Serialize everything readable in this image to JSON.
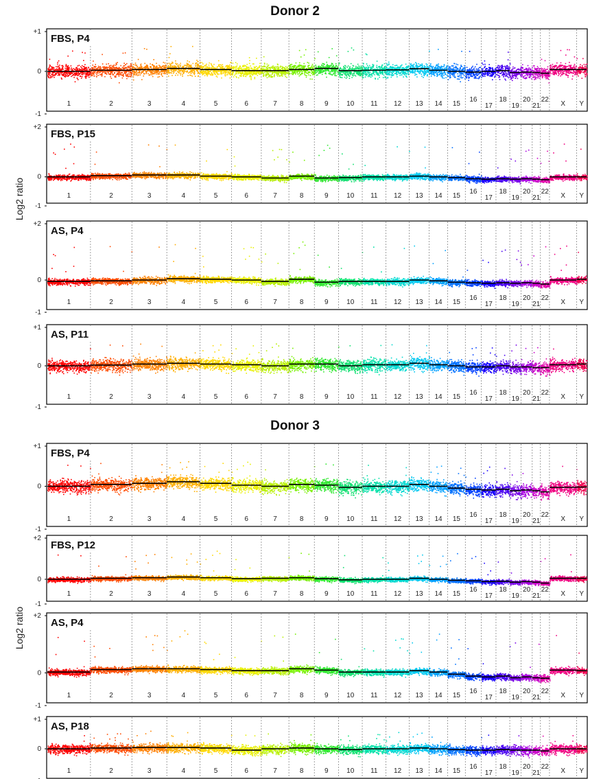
{
  "figure": {
    "donors": [
      {
        "title": "Donor 2",
        "ylabel": "Log2 ratio"
      },
      {
        "title": "Donor 3",
        "ylabel": "Log2 ratio"
      }
    ]
  },
  "chart_data": [
    {
      "type": "scatter",
      "donor": "Donor 2",
      "label": "FBS, P4",
      "y_ticks": [
        "+1",
        "0",
        "-1"
      ],
      "ylim": [
        -1,
        1
      ],
      "x_categories": [
        "1",
        "2",
        "3",
        "4",
        "5",
        "6",
        "7",
        "8",
        "9",
        "10",
        "11",
        "12",
        "13",
        "14",
        "15",
        "16",
        "17",
        "18",
        "19",
        "20",
        "21",
        "22",
        "X",
        "Y"
      ],
      "segment_means": [
        0.0,
        0.03,
        0.05,
        0.08,
        0.05,
        0.02,
        0.02,
        0.05,
        0.08,
        0.02,
        0.03,
        0.04,
        0.07,
        0.03,
        0.0,
        -0.02,
        0.0,
        0.02,
        -0.03,
        -0.02,
        -0.03,
        -0.05,
        0.05,
        0.05
      ]
    },
    {
      "type": "scatter",
      "donor": "Donor 2",
      "label": "FBS, P15",
      "y_ticks": [
        "+2",
        "0",
        "-1"
      ],
      "ylim": [
        -1,
        2
      ],
      "x_categories": [
        "1",
        "2",
        "3",
        "4",
        "5",
        "6",
        "7",
        "8",
        "9",
        "10",
        "11",
        "12",
        "13",
        "14",
        "15",
        "16",
        "17",
        "18",
        "19",
        "20",
        "21",
        "22",
        "X",
        "Y"
      ],
      "segment_means": [
        0.0,
        0.05,
        0.08,
        0.08,
        0.03,
        0.0,
        -0.05,
        0.03,
        -0.05,
        -0.03,
        0.0,
        0.0,
        0.03,
        0.0,
        -0.03,
        -0.08,
        -0.1,
        -0.08,
        -0.1,
        -0.08,
        -0.1,
        -0.12,
        0.0,
        0.0
      ]
    },
    {
      "type": "scatter",
      "donor": "Donor 2",
      "label": "AS, P4",
      "y_ticks": [
        "+2",
        "0",
        "-1"
      ],
      "ylim": [
        -1,
        2
      ],
      "x_categories": [
        "1",
        "2",
        "3",
        "4",
        "5",
        "6",
        "7",
        "8",
        "9",
        "10",
        "11",
        "12",
        "13",
        "14",
        "15",
        "16",
        "17",
        "18",
        "19",
        "20",
        "21",
        "22",
        "X",
        "Y"
      ],
      "segment_means": [
        -0.05,
        -0.03,
        0.0,
        0.05,
        0.03,
        0.0,
        -0.05,
        0.03,
        -0.08,
        -0.05,
        -0.05,
        -0.05,
        0.0,
        -0.03,
        -0.08,
        -0.1,
        -0.12,
        -0.1,
        -0.12,
        -0.1,
        -0.12,
        -0.15,
        0.0,
        0.03
      ]
    },
    {
      "type": "scatter",
      "donor": "Donor 2",
      "label": "AS, P11",
      "y_ticks": [
        "+1",
        "0",
        "-1"
      ],
      "ylim": [
        -1,
        1
      ],
      "x_categories": [
        "1",
        "2",
        "3",
        "4",
        "5",
        "6",
        "7",
        "8",
        "9",
        "10",
        "11",
        "12",
        "13",
        "14",
        "15",
        "16",
        "17",
        "18",
        "19",
        "20",
        "21",
        "22",
        "X",
        "Y"
      ],
      "segment_means": [
        0.0,
        0.02,
        0.05,
        0.07,
        0.05,
        0.03,
        0.0,
        0.05,
        0.05,
        0.0,
        0.03,
        0.03,
        0.07,
        0.03,
        0.0,
        -0.03,
        -0.03,
        0.0,
        -0.03,
        -0.03,
        -0.05,
        -0.05,
        0.03,
        0.05
      ]
    },
    {
      "type": "scatter",
      "donor": "Donor 3",
      "label": "FBS, P4",
      "y_ticks": [
        "+1",
        "0",
        "-1"
      ],
      "ylim": [
        -1,
        1
      ],
      "x_categories": [
        "1",
        "2",
        "3",
        "4",
        "5",
        "6",
        "7",
        "8",
        "9",
        "10",
        "11",
        "12",
        "13",
        "14",
        "15",
        "16",
        "17",
        "18",
        "19",
        "20",
        "21",
        "22",
        "X",
        "Y"
      ],
      "segment_means": [
        0.0,
        0.05,
        0.08,
        0.12,
        0.08,
        0.03,
        0.0,
        0.05,
        0.03,
        -0.03,
        0.0,
        0.0,
        0.05,
        0.0,
        -0.05,
        -0.08,
        -0.1,
        -0.08,
        -0.12,
        -0.1,
        -0.12,
        -0.15,
        -0.03,
        -0.02
      ]
    },
    {
      "type": "scatter",
      "donor": "Donor 3",
      "label": "FBS, P12",
      "y_ticks": [
        "+2",
        "0",
        "-1"
      ],
      "ylim": [
        -1,
        2
      ],
      "x_categories": [
        "1",
        "2",
        "3",
        "4",
        "5",
        "6",
        "7",
        "8",
        "9",
        "10",
        "11",
        "12",
        "13",
        "14",
        "15",
        "16",
        "17",
        "18",
        "19",
        "20",
        "21",
        "22",
        "X",
        "Y"
      ],
      "segment_means": [
        0.0,
        0.05,
        0.08,
        0.12,
        0.08,
        0.03,
        0.05,
        0.08,
        0.03,
        -0.03,
        0.0,
        0.0,
        0.05,
        0.0,
        -0.05,
        -0.08,
        -0.12,
        -0.1,
        -0.15,
        -0.12,
        -0.15,
        -0.2,
        0.05,
        0.05
      ]
    },
    {
      "type": "scatter",
      "donor": "Donor 3",
      "label": "AS, P4",
      "y_ticks": [
        "+2",
        "0",
        "-1"
      ],
      "ylim": [
        -1,
        2
      ],
      "x_categories": [
        "1",
        "2",
        "3",
        "4",
        "5",
        "6",
        "7",
        "8",
        "9",
        "10",
        "11",
        "12",
        "13",
        "14",
        "15",
        "16",
        "17",
        "18",
        "19",
        "20",
        "21",
        "22",
        "X",
        "Y"
      ],
      "segment_means": [
        0.03,
        0.12,
        0.15,
        0.15,
        0.12,
        0.08,
        0.08,
        0.15,
        0.1,
        0.03,
        0.03,
        0.03,
        0.08,
        0.03,
        -0.05,
        -0.12,
        -0.15,
        -0.12,
        -0.18,
        -0.15,
        -0.18,
        -0.2,
        0.1,
        0.08
      ]
    },
    {
      "type": "scatter",
      "donor": "Donor 3",
      "label": "AS, P18",
      "y_ticks": [
        "+1",
        "0",
        "-1"
      ],
      "ylim": [
        -1,
        1
      ],
      "x_categories": [
        "1",
        "2",
        "3",
        "4",
        "5",
        "6",
        "7",
        "8",
        "9",
        "10",
        "11",
        "12",
        "13",
        "14",
        "15",
        "16",
        "17",
        "18",
        "19",
        "20",
        "21",
        "22",
        "X",
        "Y"
      ],
      "segment_means": [
        0.0,
        0.03,
        0.05,
        0.05,
        0.03,
        -0.05,
        0.0,
        0.03,
        0.0,
        -0.03,
        0.0,
        0.0,
        0.03,
        0.0,
        -0.03,
        -0.05,
        -0.05,
        -0.03,
        -0.05,
        -0.05,
        -0.05,
        -0.08,
        0.0,
        0.0
      ]
    }
  ]
}
